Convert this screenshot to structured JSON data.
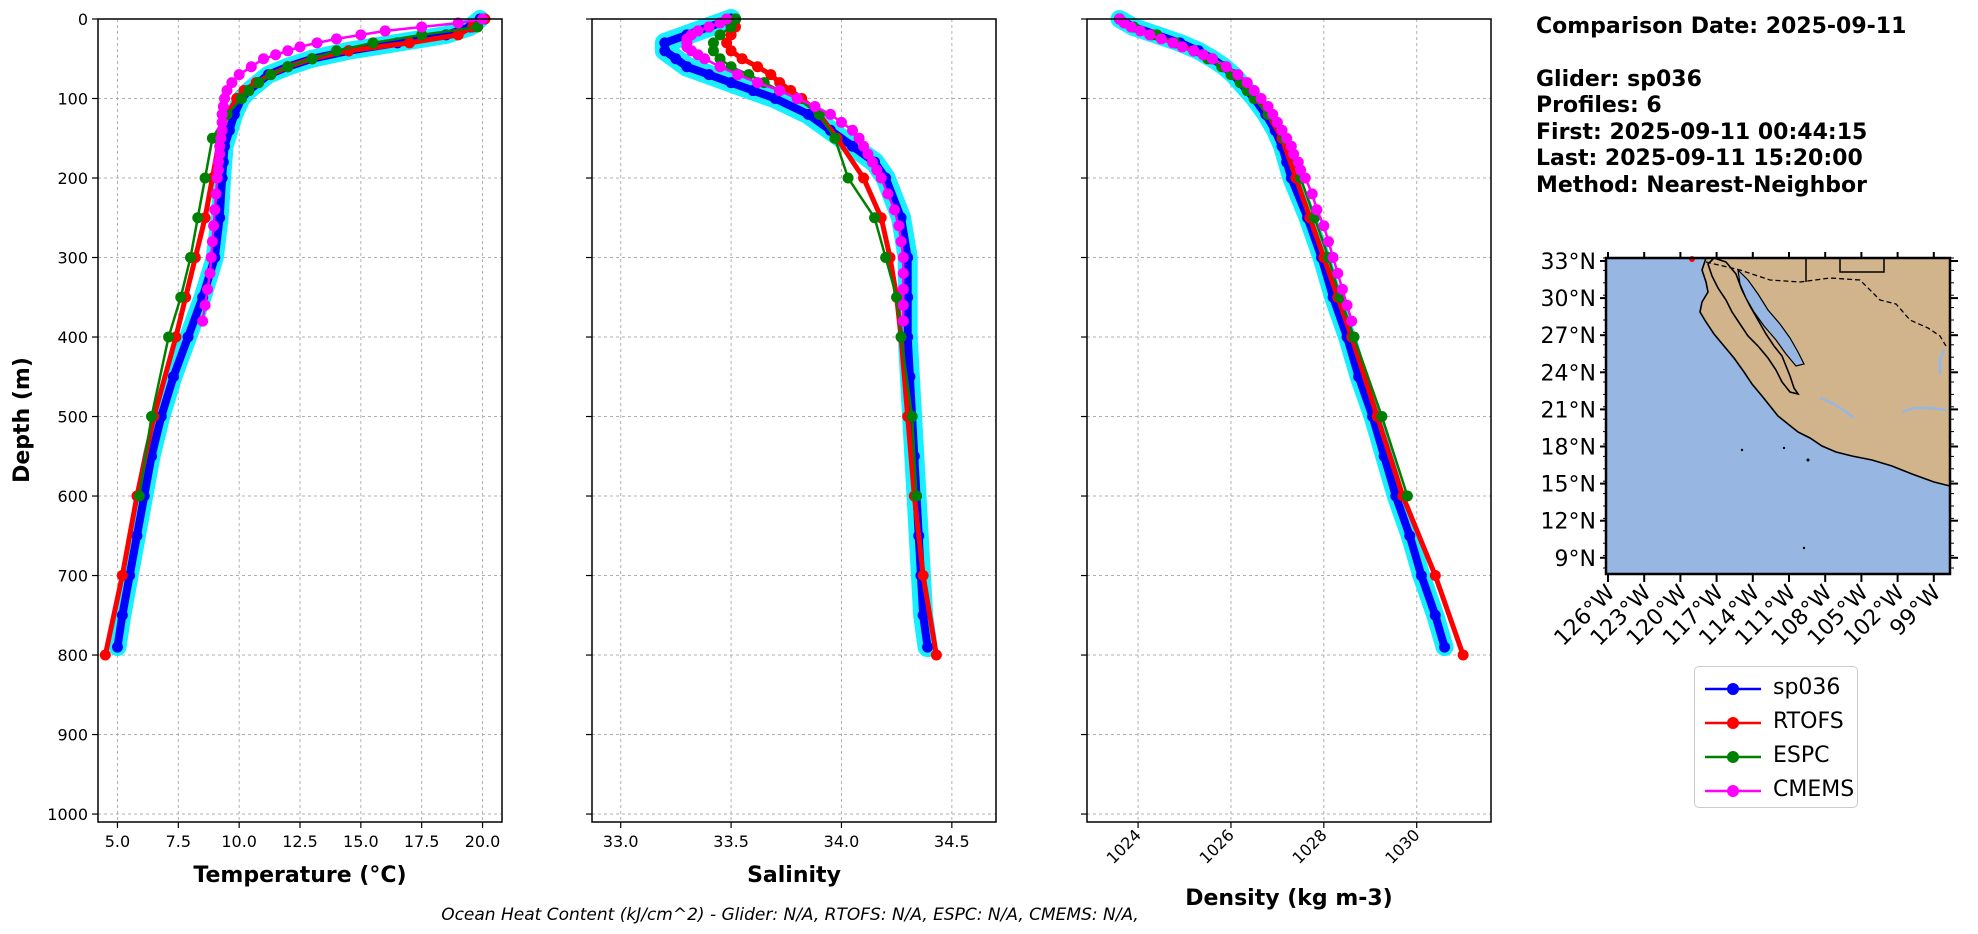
{
  "info": {
    "comparison_date": "Comparison Date: 2025-09-11",
    "glider": "Glider: sp036",
    "profiles": "Profiles: 6",
    "first": "First: 2025-09-11 00:44:15",
    "last": "Last: 2025-09-11 15:20:00",
    "method": "Method: Nearest-Neighbor"
  },
  "footer": "Ocean Heat Content (kJ/cm^2) - Glider: N/A,  RTOFS: N/A,  ESPC: N/A,  CMEMS: N/A,",
  "colors": {
    "glider": "#0000ff",
    "glider_shade": "#00eeff",
    "rtofs": "#ff0000",
    "espc": "#008000",
    "cmems": "#ff00ff",
    "ocean": "#97b6e1",
    "land": "#d2b48c",
    "river": "#97b6e1",
    "grid": "#b0b0b0"
  },
  "legend": [
    {
      "label": "sp036",
      "color": "#0000ff"
    },
    {
      "label": "RTOFS",
      "color": "#ff0000"
    },
    {
      "label": "ESPC",
      "color": "#008000"
    },
    {
      "label": "CMEMS",
      "color": "#ff00ff"
    }
  ],
  "map": {
    "lat_ticks": [
      "33°N",
      "30°N",
      "27°N",
      "24°N",
      "21°N",
      "18°N",
      "15°N",
      "12°N",
      "9°N"
    ],
    "lon_ticks": [
      "126°W",
      "123°W",
      "120°W",
      "117°W",
      "114°W",
      "111°W",
      "108°W",
      "105°W",
      "102°W",
      "99°W"
    ]
  },
  "chart_data": [
    {
      "type": "line",
      "xlabel": "Temperature (°C)",
      "ylabel": "Depth (m)",
      "xlim": [
        4.2,
        20.8
      ],
      "ylim": [
        1010,
        0
      ],
      "xticks": [
        "5.0",
        "7.5",
        "10.0",
        "12.5",
        "15.0",
        "17.5",
        "20.0"
      ],
      "yticks": [
        "0",
        "100",
        "200",
        "300",
        "400",
        "500",
        "600",
        "700",
        "800",
        "900",
        "1000"
      ],
      "grid": true,
      "series": [
        {
          "name": "sp036",
          "depth": [
            0,
            10,
            20,
            30,
            40,
            50,
            60,
            70,
            80,
            90,
            100,
            120,
            140,
            160,
            180,
            200,
            250,
            300,
            350,
            400,
            450,
            500,
            550,
            600,
            650,
            700,
            750,
            790
          ],
          "values": [
            19.9,
            19.5,
            18.5,
            16.5,
            14.5,
            13.0,
            12.0,
            11.2,
            10.8,
            10.4,
            10.1,
            9.8,
            9.6,
            9.4,
            9.35,
            9.3,
            9.2,
            9.0,
            8.5,
            7.9,
            7.3,
            6.8,
            6.4,
            6.1,
            5.8,
            5.5,
            5.2,
            5.0
          ]
        },
        {
          "name": "RTOFS",
          "depth": [
            0,
            10,
            20,
            30,
            40,
            50,
            60,
            70,
            80,
            90,
            100,
            120,
            150,
            200,
            250,
            300,
            350,
            400,
            500,
            600,
            700,
            800
          ],
          "values": [
            20.1,
            19.6,
            19.0,
            17.0,
            14.5,
            13.0,
            12.0,
            11.3,
            10.7,
            10.2,
            9.9,
            9.5,
            9.2,
            8.9,
            8.6,
            8.2,
            7.8,
            7.4,
            6.5,
            5.8,
            5.2,
            4.5
          ]
        },
        {
          "name": "ESPC",
          "depth": [
            0,
            10,
            20,
            30,
            40,
            50,
            60,
            70,
            80,
            90,
            100,
            120,
            150,
            200,
            250,
            300,
            350,
            400,
            500,
            600
          ],
          "values": [
            20.0,
            19.8,
            17.5,
            15.5,
            14.0,
            13.0,
            12.0,
            11.3,
            10.8,
            10.4,
            10.1,
            9.5,
            8.9,
            8.6,
            8.3,
            8.0,
            7.6,
            7.1,
            6.4,
            5.9
          ]
        },
        {
          "name": "CMEMS",
          "depth": [
            0,
            5,
            10,
            15,
            20,
            25,
            30,
            35,
            40,
            45,
            50,
            60,
            70,
            80,
            90,
            100,
            110,
            120,
            130,
            140,
            150,
            160,
            170,
            180,
            190,
            200,
            220,
            240,
            260,
            280,
            300,
            320,
            340,
            360,
            380
          ],
          "values": [
            20.0,
            19.0,
            17.5,
            16.0,
            15.0,
            14.0,
            13.2,
            12.5,
            12.0,
            11.5,
            11.0,
            10.5,
            10.0,
            9.7,
            9.5,
            9.4,
            9.35,
            9.3,
            9.3,
            9.3,
            9.25,
            9.2,
            9.2,
            9.15,
            9.15,
            9.1,
            9.05,
            9.0,
            8.95,
            8.9,
            8.85,
            8.8,
            8.7,
            8.6,
            8.5
          ]
        }
      ]
    },
    {
      "type": "line",
      "xlabel": "Salinity",
      "xlim": [
        32.87,
        34.7
      ],
      "ylim": [
        1010,
        0
      ],
      "xticks": [
        "33.0",
        "33.5",
        "34.0",
        "34.5"
      ],
      "grid": true,
      "series": [
        {
          "name": "sp036",
          "depth": [
            0,
            10,
            20,
            30,
            40,
            50,
            60,
            70,
            80,
            90,
            100,
            120,
            140,
            160,
            180,
            200,
            250,
            300,
            350,
            400,
            450,
            500,
            550,
            600,
            650,
            700,
            750,
            790
          ],
          "values": [
            33.5,
            33.4,
            33.3,
            33.2,
            33.2,
            33.25,
            33.3,
            33.4,
            33.5,
            33.6,
            33.7,
            33.85,
            33.95,
            34.05,
            34.15,
            34.2,
            34.27,
            34.3,
            34.3,
            34.3,
            34.31,
            34.32,
            34.33,
            34.34,
            34.35,
            34.36,
            34.37,
            34.39
          ]
        },
        {
          "name": "RTOFS",
          "depth": [
            0,
            10,
            20,
            30,
            40,
            50,
            60,
            70,
            80,
            90,
            100,
            120,
            150,
            200,
            250,
            300,
            350,
            400,
            500,
            600,
            700,
            800
          ],
          "values": [
            33.52,
            33.52,
            33.5,
            33.48,
            33.5,
            33.55,
            33.62,
            33.68,
            33.72,
            33.77,
            33.82,
            33.9,
            33.98,
            34.1,
            34.18,
            34.22,
            34.25,
            34.27,
            34.3,
            34.33,
            34.37,
            34.43
          ]
        },
        {
          "name": "ESPC",
          "depth": [
            0,
            10,
            20,
            30,
            40,
            50,
            60,
            70,
            80,
            90,
            100,
            120,
            150,
            200,
            250,
            300,
            350,
            400,
            500,
            600
          ],
          "values": [
            33.52,
            33.5,
            33.45,
            33.42,
            33.42,
            33.45,
            33.5,
            33.58,
            33.65,
            33.72,
            33.8,
            33.9,
            33.97,
            34.03,
            34.15,
            34.2,
            34.25,
            34.27,
            34.32,
            34.34
          ]
        },
        {
          "name": "CMEMS",
          "depth": [
            0,
            5,
            10,
            15,
            20,
            25,
            30,
            35,
            40,
            45,
            50,
            60,
            70,
            80,
            90,
            100,
            110,
            120,
            130,
            140,
            150,
            160,
            170,
            180,
            190,
            200,
            220,
            240,
            260,
            280,
            300,
            320,
            340,
            360,
            380
          ],
          "values": [
            33.48,
            33.45,
            33.4,
            33.35,
            33.32,
            33.3,
            33.3,
            33.3,
            33.32,
            33.35,
            33.38,
            33.45,
            33.53,
            33.62,
            33.72,
            33.8,
            33.88,
            33.95,
            34.0,
            34.05,
            34.08,
            34.1,
            34.12,
            34.14,
            34.16,
            34.18,
            34.21,
            34.24,
            34.26,
            34.27,
            34.28,
            34.28,
            34.28,
            34.28,
            34.28
          ]
        }
      ]
    },
    {
      "type": "line",
      "xlabel": "Density (kg m-3)",
      "xlim": [
        1022.9,
        1031.6
      ],
      "ylim": [
        1010,
        0
      ],
      "xticks": [
        "1024",
        "1026",
        "1028",
        "1030"
      ],
      "grid": true,
      "series": [
        {
          "name": "sp036",
          "depth": [
            0,
            10,
            20,
            30,
            40,
            50,
            60,
            70,
            80,
            90,
            100,
            120,
            140,
            160,
            180,
            200,
            250,
            300,
            350,
            400,
            450,
            500,
            550,
            600,
            650,
            700,
            750,
            790
          ],
          "values": [
            1023.6,
            1023.9,
            1024.4,
            1024.9,
            1025.3,
            1025.6,
            1025.85,
            1026.05,
            1026.2,
            1026.35,
            1026.5,
            1026.75,
            1026.95,
            1027.1,
            1027.2,
            1027.3,
            1027.65,
            1027.95,
            1028.2,
            1028.5,
            1028.75,
            1029.05,
            1029.3,
            1029.55,
            1029.85,
            1030.1,
            1030.4,
            1030.6
          ]
        },
        {
          "name": "RTOFS",
          "depth": [
            0,
            10,
            20,
            30,
            40,
            50,
            60,
            70,
            80,
            90,
            100,
            120,
            150,
            200,
            250,
            300,
            350,
            400,
            500,
            600,
            700,
            800
          ],
          "values": [
            1023.6,
            1023.9,
            1024.3,
            1024.8,
            1025.2,
            1025.55,
            1025.85,
            1026.05,
            1026.25,
            1026.4,
            1026.55,
            1026.8,
            1027.1,
            1027.4,
            1027.7,
            1028.0,
            1028.3,
            1028.6,
            1029.15,
            1029.7,
            1030.4,
            1031.0
          ]
        },
        {
          "name": "ESPC",
          "depth": [
            0,
            10,
            20,
            30,
            40,
            50,
            60,
            70,
            80,
            90,
            100,
            120,
            150,
            200,
            250,
            300,
            350,
            400,
            500,
            600
          ],
          "values": [
            1023.6,
            1023.9,
            1024.4,
            1024.8,
            1025.2,
            1025.5,
            1025.8,
            1026.0,
            1026.2,
            1026.35,
            1026.5,
            1026.8,
            1027.15,
            1027.5,
            1027.8,
            1028.1,
            1028.35,
            1028.65,
            1029.25,
            1029.8
          ]
        },
        {
          "name": "CMEMS",
          "depth": [
            0,
            5,
            10,
            15,
            20,
            25,
            30,
            35,
            40,
            45,
            50,
            60,
            70,
            80,
            90,
            100,
            110,
            120,
            130,
            140,
            150,
            160,
            170,
            180,
            190,
            200,
            220,
            240,
            260,
            280,
            300,
            320,
            340,
            360,
            380
          ],
          "values": [
            1023.6,
            1023.7,
            1023.85,
            1024.05,
            1024.25,
            1024.5,
            1024.75,
            1024.95,
            1025.2,
            1025.4,
            1025.6,
            1025.9,
            1026.15,
            1026.35,
            1026.5,
            1026.65,
            1026.8,
            1026.9,
            1027.0,
            1027.1,
            1027.2,
            1027.3,
            1027.35,
            1027.45,
            1027.5,
            1027.6,
            1027.75,
            1027.85,
            1028.0,
            1028.1,
            1028.2,
            1028.3,
            1028.4,
            1028.5,
            1028.6
          ]
        }
      ]
    }
  ]
}
